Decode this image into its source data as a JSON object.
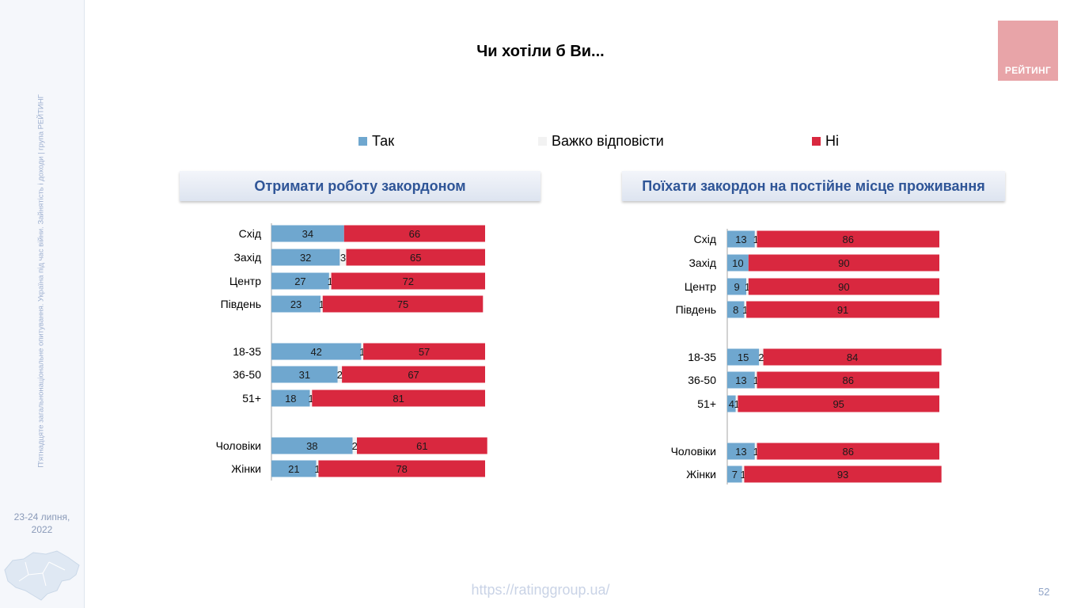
{
  "title": "Чи хотіли б Ви...",
  "logo_text": "РЕЙТИНГ",
  "sidebar": {
    "survey_text": "П'ятнадцяте загальнонаціональне опитування. Україна під час війни. Зайнятість і доходи | група РЕЙТИНГ",
    "date_line1": "23-24 липня,",
    "date_line2": "2022"
  },
  "footer": {
    "url": "https://ratinggroup.ua/",
    "page_number": "52"
  },
  "colors": {
    "yes": "#6fa7cf",
    "hard": "#f2f2f2",
    "no": "#d9283f"
  },
  "legend": [
    {
      "label": "Так",
      "color": "#6fa7cf"
    },
    {
      "label": "Важко відповісти",
      "color": "#f2f2f2"
    },
    {
      "label": "Ні",
      "color": "#d9283f"
    }
  ],
  "chart_data": [
    {
      "type": "bar",
      "stacked": true,
      "orientation": "horizontal",
      "title": "Отримати роботу закордоном",
      "categories": [
        "Схід",
        "Захід",
        "Центр",
        "Південь",
        "18-35",
        "36-50",
        "51+",
        "Чоловіки",
        "Жінки"
      ],
      "groups": [
        [
          0,
          1,
          2,
          3
        ],
        [
          4,
          5,
          6
        ],
        [
          7,
          8
        ]
      ],
      "series": [
        {
          "name": "Так",
          "values": [
            34,
            32,
            27,
            23,
            42,
            31,
            18,
            38,
            21
          ]
        },
        {
          "name": "Важко відповісти",
          "values": [
            0,
            3,
            1,
            1,
            1,
            2,
            1,
            2,
            1
          ]
        },
        {
          "name": "Ні",
          "values": [
            66,
            65,
            72,
            75,
            57,
            67,
            81,
            61,
            78
          ]
        }
      ],
      "data_labels": {
        "Так": [
          "34",
          "32",
          "27",
          "23",
          "42",
          "31",
          "18",
          "38",
          "21"
        ],
        "Важко відповісти": [
          "",
          "3",
          "1",
          "1",
          "1",
          "2",
          "1",
          "2",
          "1"
        ],
        "Ні": [
          "66",
          "65",
          "72",
          "75",
          "57",
          "67",
          "81",
          "61",
          "78"
        ]
      },
      "xlim": [
        0,
        100
      ],
      "grid": false,
      "legend_position": "top"
    },
    {
      "type": "bar",
      "stacked": true,
      "orientation": "horizontal",
      "title": "Поїхати закордон на постійне місце проживання",
      "categories": [
        "Схід",
        "Захід",
        "Центр",
        "Південь",
        "18-35",
        "36-50",
        "51+",
        "Чоловіки",
        "Жінки"
      ],
      "groups": [
        [
          0,
          1,
          2,
          3
        ],
        [
          4,
          5,
          6
        ],
        [
          7,
          8
        ]
      ],
      "series": [
        {
          "name": "Так",
          "values": [
            13,
            10,
            9,
            8,
            15,
            13,
            4,
            13,
            7
          ]
        },
        {
          "name": "Важко відповісти",
          "values": [
            1,
            0,
            1,
            1,
            2,
            1,
            1,
            1,
            1
          ]
        },
        {
          "name": "Ні",
          "values": [
            86,
            90,
            90,
            91,
            84,
            86,
            95,
            86,
            93
          ]
        }
      ],
      "data_labels": {
        "Так": [
          "13",
          "10",
          "9",
          "8",
          "15",
          "13",
          "4",
          "13",
          "7"
        ],
        "Важко відповісти": [
          "1",
          "",
          "1",
          "1",
          "2",
          "1",
          "1",
          "1",
          "1"
        ],
        "Ні": [
          "86",
          "90",
          "90",
          "91",
          "84",
          "86",
          "95",
          "86",
          "93"
        ]
      },
      "xlim": [
        0,
        100
      ],
      "grid": false,
      "legend_position": "top"
    }
  ]
}
